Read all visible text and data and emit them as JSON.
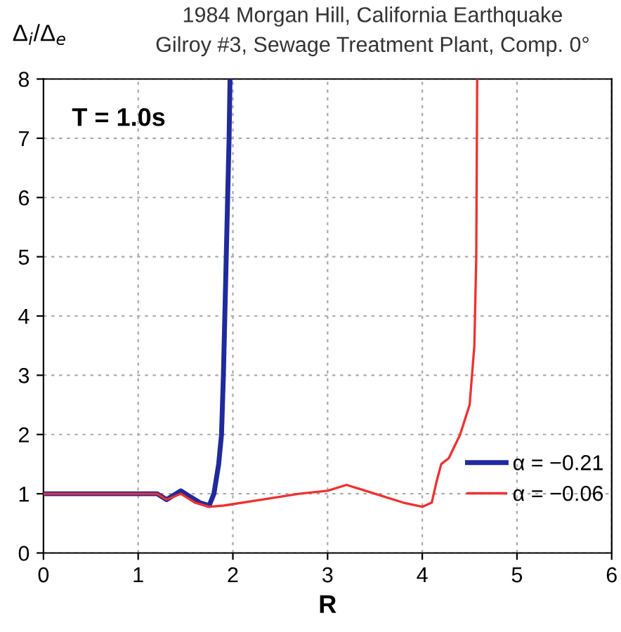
{
  "chart_data": {
    "type": "line",
    "title": "1984 Morgan Hill, California Earthquake",
    "subtitle": "Gilroy #3, Sewage Treatment Plant, Comp. 0°",
    "xlabel": "R",
    "ylabel": "Δ$_{i}$/Δ$_{e}$",
    "annotations": [
      "T = 1.0s"
    ],
    "xlim": [
      0,
      6
    ],
    "xticks": [
      0,
      1,
      2,
      3,
      4,
      5,
      6
    ],
    "ylim": [
      0,
      8
    ],
    "yticks": [
      0,
      1,
      2,
      3,
      4,
      5,
      6,
      7,
      8
    ],
    "grid": true,
    "legend": "bottom right",
    "line_style": "solid",
    "marker": "none",
    "series": [
      {
        "name": "α = −0.21",
        "color": "#1f2a9c",
        "x": [
          0,
          1.2,
          1.3,
          1.45,
          1.55,
          1.65,
          1.75,
          1.8,
          1.85,
          1.88,
          1.9,
          1.93,
          1.96,
          1.97
        ],
        "values": [
          1.0,
          1.0,
          0.9,
          1.05,
          0.95,
          0.85,
          0.8,
          1.0,
          1.5,
          2.0,
          3.0,
          5.0,
          7.0,
          8.0
        ]
      },
      {
        "name": "α = −0.06",
        "color": "#f03030",
        "x": [
          0,
          1.2,
          1.3,
          1.45,
          1.6,
          1.75,
          1.9,
          2.3,
          2.7,
          3.0,
          3.2,
          3.5,
          3.8,
          4.0,
          4.1,
          4.15,
          4.2,
          4.28,
          4.4,
          4.5,
          4.55,
          4.57,
          4.58
        ],
        "values": [
          1.0,
          1.0,
          0.9,
          1.0,
          0.85,
          0.78,
          0.8,
          0.9,
          1.0,
          1.05,
          1.15,
          1.0,
          0.85,
          0.78,
          0.85,
          1.2,
          1.5,
          1.6,
          2.0,
          2.5,
          3.5,
          5.0,
          8.0
        ]
      }
    ]
  }
}
